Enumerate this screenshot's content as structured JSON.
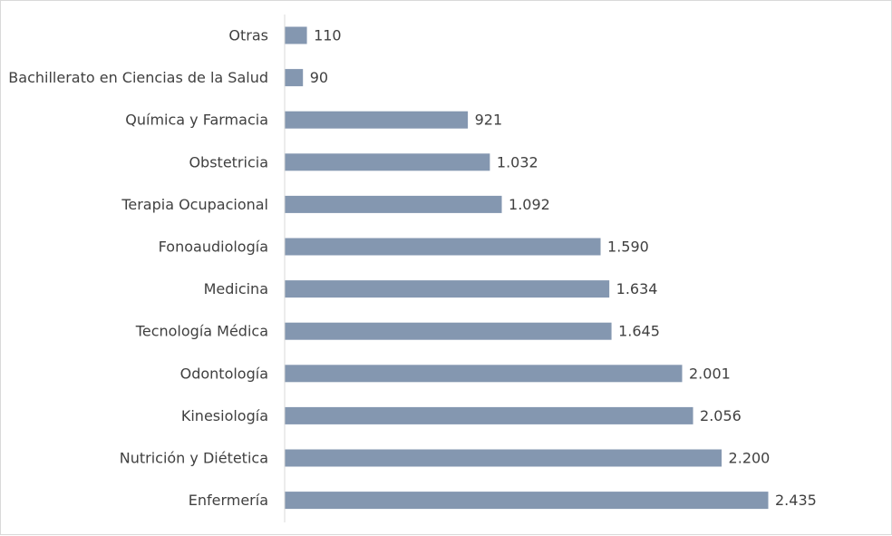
{
  "chart_data": {
    "type": "bar",
    "orientation": "horizontal",
    "categories": [
      "Otras",
      "Bachillerato en Ciencias de la Salud",
      "Química y Farmacia",
      "Obstetricia",
      "Terapia Ocupacional",
      "Fonoaudiología",
      "Medicina",
      "Tecnología Médica",
      "Odontología",
      "Kinesiología",
      "Nutrición y Diétetica",
      "Enfermería"
    ],
    "values": [
      110,
      90,
      921,
      1032,
      1092,
      1590,
      1634,
      1645,
      2001,
      2056,
      2200,
      2435
    ],
    "value_labels": [
      "110",
      "90",
      "921",
      "1.032",
      "1.092",
      "1.590",
      "1.634",
      "1.645",
      "2.001",
      "2.056",
      "2.200",
      "2.435"
    ],
    "title": "",
    "xlabel": "",
    "ylabel": "",
    "xlim": [
      0,
      2435
    ],
    "grid": false,
    "legend": "none",
    "bar_color": "#8497b0",
    "text_color": "#404040",
    "axis_color": "#d9d9d9"
  }
}
